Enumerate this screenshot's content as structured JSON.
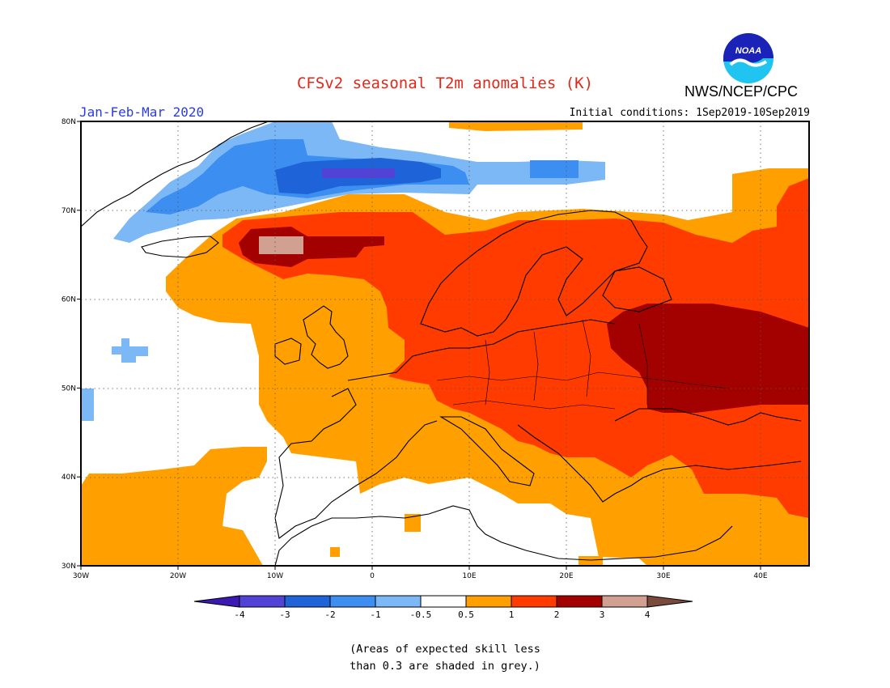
{
  "header": {
    "title": "CFSv2 seasonal T2m anomalies (K)",
    "period": "Jan-Feb-Mar 2020",
    "initial_conditions": "Initial conditions: 1Sep2019-10Sep2019",
    "agency": "NWS/NCEP/CPC",
    "logo_text": "NOAA"
  },
  "map": {
    "lon_range": [
      -30,
      45
    ],
    "lat_range": [
      30,
      80
    ],
    "lon_ticks": [
      "30W",
      "20W",
      "10W",
      "0",
      "10E",
      "20E",
      "30E",
      "40E"
    ],
    "lat_ticks": [
      "30N",
      "40N",
      "50N",
      "60N",
      "70N",
      "80N"
    ],
    "grid": "dotted"
  },
  "legend": {
    "ticks": [
      "-4",
      "-3",
      "-2",
      "-1",
      "-0.5",
      "0.5",
      "1",
      "2",
      "3",
      "4"
    ],
    "colors": [
      "#3b19b3",
      "#5243d6",
      "#1e64d8",
      "#3c8ef0",
      "#7cb8f6",
      "#ffffff",
      "#ffa000",
      "#ff3b00",
      "#a30000",
      "#d2a090",
      "#7a4a3a"
    ]
  },
  "note": {
    "line1": "(Areas of expected skill less",
    "line2": "than 0.3 are shaded in grey.)"
  }
}
